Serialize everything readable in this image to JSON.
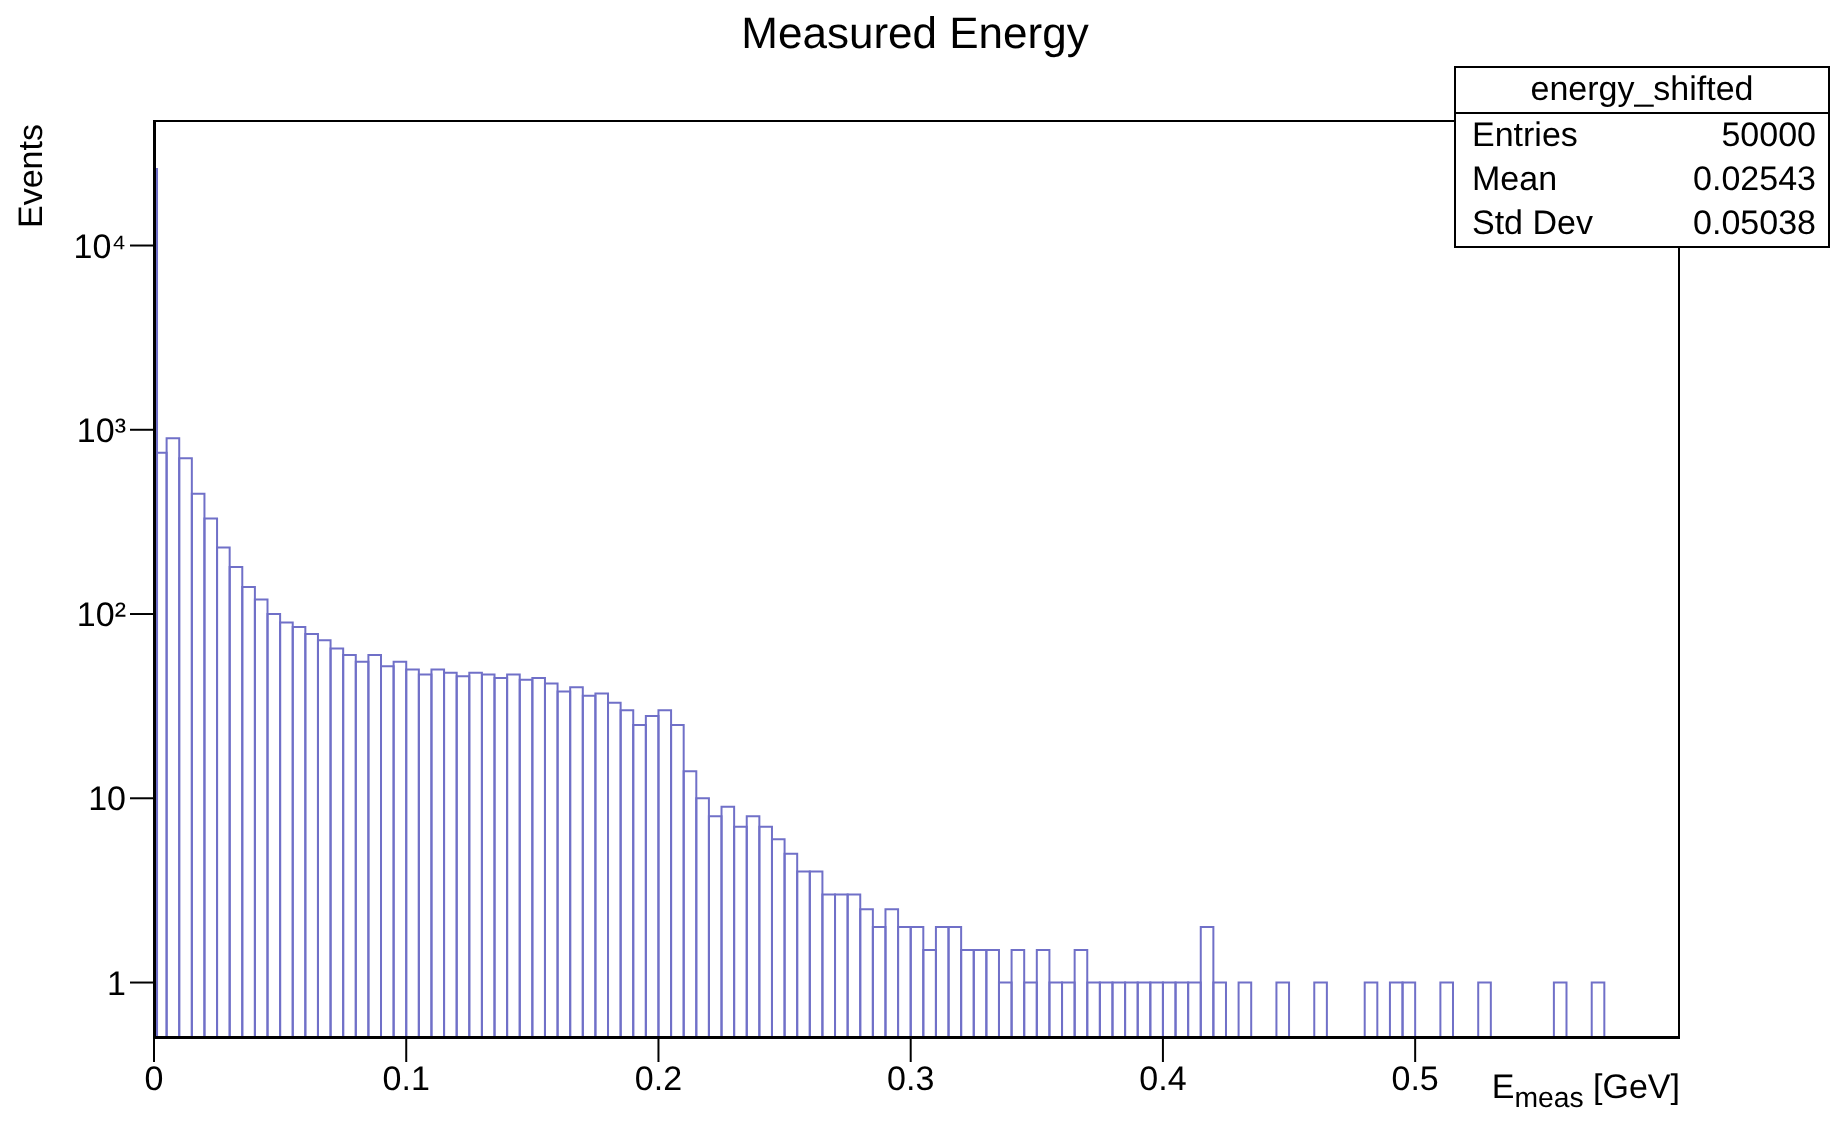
{
  "chart_data": {
    "type": "histogram",
    "title": "Measured Energy",
    "xlabel": "E$_{meas}$ [GeV]",
    "ylabel": "Events",
    "annotations": [
      "energy_shifted",
      "Entries",
      "50000",
      "Mean",
      "0.02543",
      "Std Dev",
      "0.05038"
    ],
    "color": "#7070c8",
    "log": "y",
    "grid": false,
    "xlim": [
      0,
      0.605
    ],
    "xticks": [
      0,
      0.1,
      0.2,
      0.3,
      0.4,
      0.5
    ],
    "ylim": [
      0.5,
      48000
    ],
    "yticks": [
      1,
      10,
      {
        "value": 100,
        "label": "10²"
      },
      {
        "value": 1000,
        "label": "10³"
      },
      {
        "value": 10000,
        "label": "10⁴"
      }
    ],
    "bins": [
      0,
      0.0012,
      0.005,
      0.01,
      0.015,
      0.02,
      0.025,
      0.03,
      0.035,
      0.04,
      0.045,
      0.05,
      0.055,
      0.06,
      0.065,
      0.07,
      0.075,
      0.08,
      0.085,
      0.09,
      0.095,
      0.1,
      0.105,
      0.11,
      0.115,
      0.12,
      0.125,
      0.13,
      0.135,
      0.14,
      0.145,
      0.15,
      0.155,
      0.16,
      0.165,
      0.17,
      0.175,
      0.18,
      0.185,
      0.19,
      0.195,
      0.2,
      0.205,
      0.21,
      0.215,
      0.22,
      0.225,
      0.23,
      0.235,
      0.24,
      0.245,
      0.25,
      0.255,
      0.26,
      0.265,
      0.27,
      0.275,
      0.28,
      0.285,
      0.29,
      0.295,
      0.3,
      0.305,
      0.31,
      0.315,
      0.32,
      0.325,
      0.33,
      0.335,
      0.34,
      0.345,
      0.35,
      0.355,
      0.36,
      0.365,
      0.37,
      0.375,
      0.38,
      0.385,
      0.39,
      0.395,
      0.4,
      0.405,
      0.41,
      0.415,
      0.42,
      0.425,
      0.43,
      0.435,
      0.445,
      0.45,
      0.46,
      0.465,
      0.48,
      0.485,
      0.49,
      0.495,
      0.5,
      0.51,
      0.515,
      0.525,
      0.53,
      0.555,
      0.56,
      0.57,
      0.575
    ],
    "values": [
      26000,
      750,
      900,
      700,
      450,
      330,
      230,
      180,
      140,
      120,
      100,
      90,
      85,
      78,
      72,
      65,
      60,
      55,
      60,
      52,
      55,
      50,
      47,
      50,
      48,
      46,
      48,
      47,
      45,
      47,
      44,
      45,
      42,
      38,
      40,
      36,
      37,
      33,
      30,
      25,
      28,
      30,
      25,
      14,
      10,
      8,
      9,
      7,
      8,
      7,
      6,
      5,
      4,
      4,
      3,
      3,
      3,
      2.5,
      2,
      2.5,
      2,
      2,
      1.5,
      2,
      2,
      1.5,
      1.5,
      1.5,
      1,
      1.5,
      1,
      1.5,
      1,
      1,
      1.5,
      1,
      1,
      1,
      1,
      1,
      1,
      1,
      1,
      1,
      2,
      1,
      null,
      1,
      null,
      1,
      null,
      1,
      null,
      1,
      null,
      1,
      1,
      null,
      1,
      null,
      1,
      null,
      1,
      null,
      1
    ]
  }
}
